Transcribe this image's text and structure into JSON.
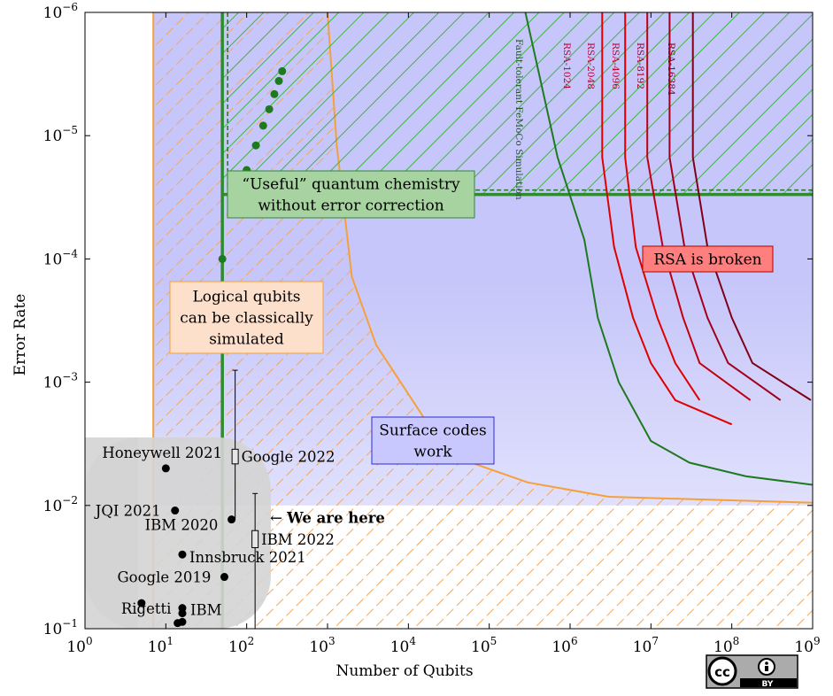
{
  "chart_data": {
    "type": "scatter",
    "xlabel": "Number of Qubits",
    "ylabel": "Error Rate",
    "xscale": "log",
    "yscale": "log",
    "xlim": [
      1,
      1000000000
    ],
    "ylim": [
      0.1,
      1e-06
    ],
    "y_axis_inverted": true,
    "x_ticks": [
      {
        "base": "10",
        "exp": "0"
      },
      {
        "base": "10",
        "exp": "1"
      },
      {
        "base": "10",
        "exp": "2"
      },
      {
        "base": "10",
        "exp": "3"
      },
      {
        "base": "10",
        "exp": "4"
      },
      {
        "base": "10",
        "exp": "5"
      },
      {
        "base": "10",
        "exp": "6"
      },
      {
        "base": "10",
        "exp": "7"
      },
      {
        "base": "10",
        "exp": "8"
      },
      {
        "base": "10",
        "exp": "9"
      }
    ],
    "y_ticks": [
      {
        "base": "10",
        "exp": "−6"
      },
      {
        "base": "10",
        "exp": "−5"
      },
      {
        "base": "10",
        "exp": "−4"
      },
      {
        "base": "10",
        "exp": "−3"
      },
      {
        "base": "10",
        "exp": "−2"
      },
      {
        "base": "10",
        "exp": "−1"
      }
    ],
    "regions": [
      {
        "text": [
          "Logical qubits",
          "can be classically",
          "simulated"
        ],
        "color": "#f5a03a",
        "x_min": 7
      },
      {
        "text": [
          "Surface codes",
          "work"
        ],
        "color": "#b8b8f8",
        "y_max": 0.01
      },
      {
        "text": [
          "“Useful” quantum chemistry",
          "without error correction"
        ],
        "color": "#2e8b2e",
        "x_min": 50,
        "y_max": 3e-05
      },
      {
        "text": [
          "RSA is broken"
        ],
        "color": "#ff7373"
      }
    ],
    "useful_chemistry_points": [
      {
        "x": 50,
        "y": 0.0001
      },
      {
        "x": 100,
        "y": 1.9e-05
      },
      {
        "x": 130,
        "y": 1.2e-05
      },
      {
        "x": 160,
        "y": 8.3e-06
      },
      {
        "x": 190,
        "y": 6.1e-06
      },
      {
        "x": 220,
        "y": 4.6e-06
      },
      {
        "x": 250,
        "y": 3.6e-06
      },
      {
        "x": 275,
        "y": 3e-06
      }
    ],
    "experiments": [
      {
        "label": "Honeywell 2021",
        "x": 10,
        "y": 0.005
      },
      {
        "label": "JQI 2021",
        "x": 13,
        "y": 0.011
      },
      {
        "label": "IBM 2020",
        "x": 65,
        "y": 0.013
      },
      {
        "label": "Innsbruck 2021",
        "x": 16,
        "y": 0.025
      },
      {
        "label": "Google 2019",
        "x": 53,
        "y": 0.038
      },
      {
        "label": "Rigetti",
        "x": 5,
        "y": 0.062
      },
      {
        "label": "IBM",
        "x": 16,
        "y": 0.068
      },
      {
        "label": "",
        "x": 16,
        "y": 0.075
      },
      {
        "label": "",
        "x": 14,
        "y": 0.09
      },
      {
        "label": "",
        "x": 16,
        "y": 0.088
      }
    ],
    "ranges": [
      {
        "label": "Google 2022",
        "x": 72,
        "y_low": 0.0008,
        "y_high": 0.013,
        "box_low": 0.0035,
        "box_high": 0.0046
      },
      {
        "label": "IBM 2022",
        "x": 127,
        "y_low": 0.008,
        "y_high": 0.1,
        "box_low": 0.016,
        "box_high": 0.022
      }
    ],
    "annotation": {
      "text": "We are here",
      "arrow": "←",
      "x": 130,
      "y": 0.0125
    },
    "threshold_curves": [
      {
        "label": "Fault-tolerant FeMoCo Simulation",
        "color": "#1e7a1e",
        "points": [
          [
            280000,
            1e-06
          ],
          [
            700000,
            1.5e-05
          ],
          [
            1500000,
            7e-05
          ],
          [
            2200000,
            0.0003
          ],
          [
            4000000,
            0.001
          ],
          [
            10000000,
            0.003
          ],
          [
            30000000,
            0.0045
          ],
          [
            150000000,
            0.0058
          ],
          [
            1000000000,
            0.0068
          ]
        ]
      },
      {
        "label": "RSA-1024",
        "color": "#e00000",
        "points": [
          [
            2500000,
            1e-06
          ],
          [
            2500000,
            1.5e-05
          ],
          [
            3500000,
            8e-05
          ],
          [
            6000000,
            0.0003
          ],
          [
            10000000,
            0.0007
          ],
          [
            20000000,
            0.0014
          ],
          [
            100000000,
            0.0022
          ]
        ]
      },
      {
        "label": "RSA-2048",
        "color": "#e00000",
        "points": [
          [
            4800000,
            1e-06
          ],
          [
            4800000,
            1.5e-05
          ],
          [
            6500000,
            8e-05
          ],
          [
            12000000,
            0.0003
          ],
          [
            20000000,
            0.0007
          ],
          [
            40000000,
            0.0014
          ]
        ]
      },
      {
        "label": "RSA-4096",
        "color": "#c00010",
        "points": [
          [
            9000000,
            1e-06
          ],
          [
            9000000,
            1.5e-05
          ],
          [
            14000000,
            8e-05
          ],
          [
            25000000,
            0.0003
          ],
          [
            40000000,
            0.0007
          ],
          [
            170000000,
            0.0014
          ]
        ]
      },
      {
        "label": "RSA-8192",
        "color": "#a0001c",
        "points": [
          [
            17000000,
            1e-06
          ],
          [
            17000000,
            1.5e-05
          ],
          [
            26000000,
            8e-05
          ],
          [
            50000000,
            0.0003
          ],
          [
            90000000,
            0.0007
          ],
          [
            400000000,
            0.0014
          ]
        ]
      },
      {
        "label": "RSA-16384",
        "color": "#800018",
        "points": [
          [
            33000000,
            1e-06
          ],
          [
            33000000,
            1.5e-05
          ],
          [
            50000000,
            8e-05
          ],
          [
            100000000,
            0.0003
          ],
          [
            180000000,
            0.0007
          ],
          [
            950000000,
            0.0014
          ]
        ]
      }
    ],
    "grid": false,
    "legend": "none"
  },
  "license_badge": {
    "cc": "cc",
    "by": "BY",
    "icon": "person-icon"
  }
}
